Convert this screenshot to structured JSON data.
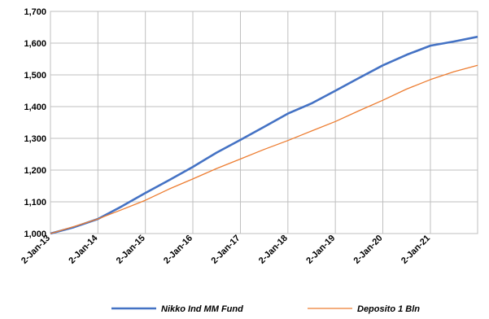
{
  "chart_data": {
    "type": "line",
    "y_ticks": [
      "1,000",
      "1,100",
      "1,200",
      "1,300",
      "1,400",
      "1,500",
      "1,600",
      "1,700"
    ],
    "ylim": [
      1000,
      1700
    ],
    "x_ticks": [
      "2-Jan-13",
      "2-Jan-14",
      "2-Jan-15",
      "2-Jan-16",
      "2-Jan-17",
      "2-Jan-18",
      "2-Jan-19",
      "2-Jan-20",
      "2-Jan-21"
    ],
    "xlim": [
      "2013-01-02",
      "2021-12-31"
    ],
    "grid": true,
    "legend_position": "bottom",
    "x": [
      "2013-01-02",
      "2013-07-02",
      "2014-01-02",
      "2014-07-02",
      "2015-01-02",
      "2015-07-02",
      "2016-01-02",
      "2016-07-02",
      "2017-01-02",
      "2017-07-02",
      "2018-01-02",
      "2018-07-02",
      "2019-01-02",
      "2019-07-02",
      "2020-01-02",
      "2020-07-02",
      "2021-01-02",
      "2021-07-02",
      "2021-12-31"
    ],
    "series": [
      {
        "name": "Nikko Ind MM Fund",
        "color": "#4472C4",
        "values": [
          1000,
          1020,
          1046,
          1085,
          1128,
          1168,
          1210,
          1255,
          1295,
          1336,
          1378,
          1410,
          1450,
          1490,
          1530,
          1563,
          1592,
          1605,
          1620
        ]
      },
      {
        "name": "Deposito 1 Bln",
        "color": "#ED7D31",
        "values": [
          1000,
          1022,
          1046,
          1075,
          1105,
          1140,
          1172,
          1205,
          1235,
          1265,
          1293,
          1323,
          1353,
          1387,
          1420,
          1455,
          1485,
          1510,
          1530
        ]
      }
    ]
  }
}
